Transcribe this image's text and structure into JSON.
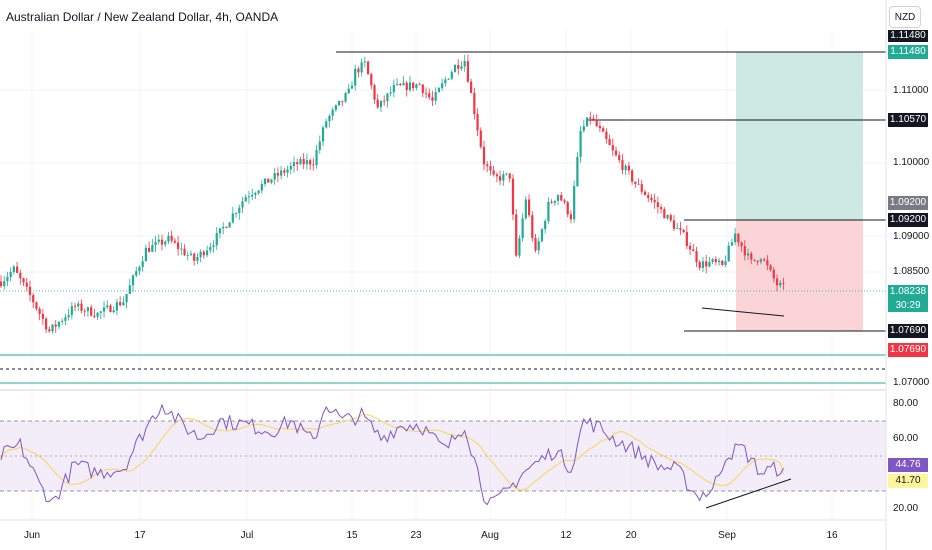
{
  "header": {
    "title": "Australian Dollar / New Zealand Dollar, 4h, OANDA",
    "currency_button": "NZD"
  },
  "colors": {
    "up": "#22ab94",
    "down": "#f23645",
    "rsi_line": "#7e57c2",
    "rsi_ma": "#f5d76e",
    "target_zone": "#cde9e2",
    "stop_zone": "#fad4d7",
    "rsi_band": "#ede7f6"
  },
  "price_axis": {
    "ticks": [
      "1.11000",
      "1.10000",
      "1.09000",
      "1.08500",
      "1.07000"
    ]
  },
  "price_labels": {
    "top_black": "1.11480",
    "top_green": "1.11480",
    "mid_black": "1.10570",
    "gray": "1.09200",
    "black_092": "1.09200",
    "current": "1.08238",
    "countdown": "30:29",
    "low_black": "1.07690",
    "low_red": "1.07690"
  },
  "rsi_axis": {
    "ticks": [
      "80.00",
      "60.00",
      "20.00"
    ],
    "rsi_value": "44.76",
    "ma_value": "41.70"
  },
  "time_axis": {
    "labels": [
      "Jun",
      "17",
      "Jul",
      "15",
      "23",
      "Aug",
      "12",
      "20",
      "Sep",
      "16"
    ]
  },
  "chart_data": {
    "type": "candlestick",
    "symbol": "AUDNZD",
    "interval": "4h",
    "price_range": [
      1.0695,
      1.1165
    ],
    "rsi_range": [
      15,
      88
    ],
    "anchors": [
      [
        0,
        1.0832
      ],
      [
        4,
        1.0848
      ],
      [
        10,
        1.0806
      ],
      [
        15,
        1.0766
      ],
      [
        23,
        1.0799
      ],
      [
        30,
        1.0789
      ],
      [
        38,
        1.0806
      ],
      [
        45,
        1.0874
      ],
      [
        52,
        1.0888
      ],
      [
        60,
        1.086
      ],
      [
        66,
        1.0885
      ],
      [
        76,
        1.0945
      ],
      [
        84,
        1.0968
      ],
      [
        92,
        1.0988
      ],
      [
        97,
        1.0991
      ],
      [
        101,
        1.1045
      ],
      [
        108,
        1.1082
      ],
      [
        110,
        1.111
      ],
      [
        113,
        1.112
      ],
      [
        117,
        1.1061
      ],
      [
        122,
        1.1088
      ],
      [
        130,
        1.1093
      ],
      [
        134,
        1.107
      ],
      [
        138,
        1.1099
      ],
      [
        141,
        1.1117
      ],
      [
        144,
        1.1125
      ],
      [
        146,
        1.108
      ],
      [
        150,
        1.099
      ],
      [
        153,
        1.0968
      ],
      [
        158,
        1.0972
      ],
      [
        160,
        1.0862
      ],
      [
        163,
        1.0942
      ],
      [
        166,
        1.0868
      ],
      [
        170,
        1.0933
      ],
      [
        173,
        1.0948
      ],
      [
        177,
        1.0918
      ],
      [
        180,
        1.103
      ],
      [
        183,
        1.105
      ],
      [
        187,
        1.1025
      ],
      [
        190,
        1.1003
      ],
      [
        197,
        1.0962
      ],
      [
        204,
        1.0931
      ],
      [
        209,
        1.0906
      ],
      [
        212,
        1.0892
      ],
      [
        217,
        1.0855
      ],
      [
        221,
        1.0857
      ],
      [
        224,
        1.0852
      ],
      [
        228,
        1.0895
      ],
      [
        233,
        1.0857
      ],
      [
        236,
        1.0866
      ],
      [
        241,
        1.0828
      ],
      [
        243,
        1.0824
      ]
    ],
    "rsi_anchors": [
      [
        0,
        52
      ],
      [
        6,
        58
      ],
      [
        12,
        35
      ],
      [
        16,
        25
      ],
      [
        23,
        47
      ],
      [
        30,
        42
      ],
      [
        38,
        45
      ],
      [
        45,
        68
      ],
      [
        50,
        82
      ],
      [
        56,
        70
      ],
      [
        62,
        62
      ],
      [
        68,
        72
      ],
      [
        76,
        70
      ],
      [
        84,
        66
      ],
      [
        90,
        72
      ],
      [
        97,
        60
      ],
      [
        101,
        82
      ],
      [
        106,
        72
      ],
      [
        112,
        75
      ],
      [
        118,
        62
      ],
      [
        124,
        69
      ],
      [
        130,
        70
      ],
      [
        138,
        55
      ],
      [
        144,
        70
      ],
      [
        147,
        50
      ],
      [
        150,
        30
      ],
      [
        153,
        24
      ],
      [
        158,
        33
      ],
      [
        162,
        42
      ],
      [
        168,
        50
      ],
      [
        172,
        55
      ],
      [
        177,
        45
      ],
      [
        181,
        72
      ],
      [
        186,
        68
      ],
      [
        190,
        62
      ],
      [
        196,
        56
      ],
      [
        204,
        46
      ],
      [
        210,
        44
      ],
      [
        216,
        29
      ],
      [
        221,
        32
      ],
      [
        225,
        52
      ],
      [
        230,
        57
      ],
      [
        236,
        42
      ],
      [
        239,
        44
      ],
      [
        243,
        44.8
      ]
    ],
    "levels": [
      {
        "price": 1.1148,
        "label": "1.11480"
      },
      {
        "price": 1.1057,
        "label": "1.10570"
      },
      {
        "price": 1.092,
        "label": "1.09200"
      },
      {
        "price": 1.0769,
        "label": "1.07690"
      }
    ],
    "position": {
      "type": "long",
      "entry": 1.092,
      "target": 1.1148,
      "stop": 1.0769
    },
    "rsi": {
      "value": 44.76,
      "ma": 41.7,
      "levels": [
        70,
        50,
        30
      ]
    }
  }
}
